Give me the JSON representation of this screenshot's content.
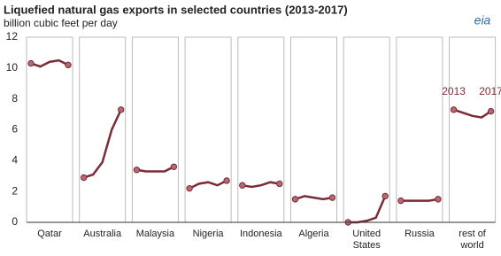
{
  "chart_data": {
    "type": "line",
    "title": "Liquefied natural gas exports in selected countries (2013-2017)",
    "subtitle": "billion cubic feet per day",
    "logo": "eia",
    "annotations": [
      "2013",
      "2017"
    ],
    "ylim": [
      0,
      12
    ],
    "yticks": [
      0,
      2,
      4,
      6,
      8,
      10,
      12
    ],
    "series": [
      {
        "name": "Qatar",
        "color": "#7b2b35",
        "values": [
          10.3,
          10.1,
          10.4,
          10.5,
          10.2
        ]
      },
      {
        "name": "Australia",
        "color": "#7b2b35",
        "values": [
          2.9,
          3.1,
          3.9,
          6.0,
          7.3
        ]
      },
      {
        "name": "Malaysia",
        "color": "#7b2b35",
        "values": [
          3.4,
          3.3,
          3.3,
          3.3,
          3.6
        ]
      },
      {
        "name": "Nigeria",
        "color": "#7b2b35",
        "values": [
          2.2,
          2.5,
          2.6,
          2.4,
          2.7
        ]
      },
      {
        "name": "Indonesia",
        "color": "#7b2b35",
        "values": [
          2.4,
          2.3,
          2.4,
          2.6,
          2.5
        ]
      },
      {
        "name": "Algeria",
        "color": "#7b2b35",
        "values": [
          1.5,
          1.7,
          1.6,
          1.5,
          1.6
        ]
      },
      {
        "name": "United States",
        "color": "#7b2b35",
        "values": [
          0.0,
          0.0,
          0.1,
          0.3,
          1.7
        ]
      },
      {
        "name": "Russia",
        "color": "#7b2b35",
        "values": [
          1.4,
          1.4,
          1.4,
          1.4,
          1.5
        ]
      },
      {
        "name": "rest of world",
        "color": "#7b2b35",
        "values": [
          7.3,
          7.1,
          6.9,
          6.8,
          7.2
        ]
      }
    ]
  }
}
